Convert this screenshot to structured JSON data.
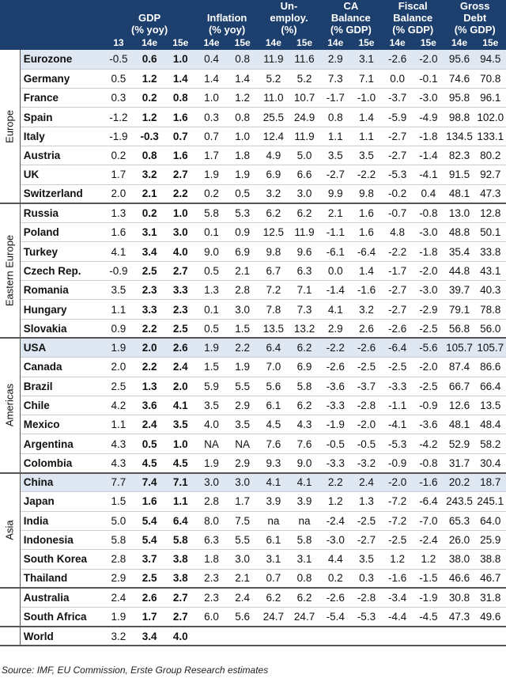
{
  "header": {
    "groups": [
      {
        "label": "GDP\n(% yoy)",
        "span": 3
      },
      {
        "label": "Inflation\n(% yoy)",
        "span": 2
      },
      {
        "label": "Un-\nemploy.\n(%)",
        "span": 2
      },
      {
        "label": "CA\nBalance\n(% GDP)",
        "span": 2
      },
      {
        "label": "Fiscal\nBalance\n(% GDP)",
        "span": 2
      },
      {
        "label": "Gross\nDebt\n(% GDP)",
        "span": 2
      }
    ],
    "years": [
      "13",
      "14e",
      "15e",
      "14e",
      "15e",
      "14e",
      "15e",
      "14e",
      "15e",
      "14e",
      "15e",
      "14e",
      "15e"
    ]
  },
  "regions": [
    {
      "name": "Europe",
      "rows": [
        {
          "country": "Eurozone",
          "hl": true,
          "values": [
            "-0.5",
            "0.6",
            "1.0",
            "0.4",
            "0.8",
            "11.9",
            "11.6",
            "2.9",
            "3.1",
            "-2.6",
            "-2.0",
            "95.6",
            "94.5"
          ]
        },
        {
          "country": "Germany",
          "values": [
            "0.5",
            "1.2",
            "1.4",
            "1.4",
            "1.4",
            "5.2",
            "5.2",
            "7.3",
            "7.1",
            "0.0",
            "-0.1",
            "74.6",
            "70.8"
          ]
        },
        {
          "country": "France",
          "values": [
            "0.3",
            "0.2",
            "0.8",
            "1.0",
            "1.2",
            "11.0",
            "10.7",
            "-1.7",
            "-1.0",
            "-3.7",
            "-3.0",
            "95.8",
            "96.1"
          ]
        },
        {
          "country": "Spain",
          "values": [
            "-1.2",
            "1.2",
            "1.6",
            "0.3",
            "0.8",
            "25.5",
            "24.9",
            "0.8",
            "1.4",
            "-5.9",
            "-4.9",
            "98.8",
            "102.0"
          ]
        },
        {
          "country": "Italy",
          "values": [
            "-1.9",
            "-0.3",
            "0.7",
            "0.7",
            "1.0",
            "12.4",
            "11.9",
            "1.1",
            "1.1",
            "-2.7",
            "-1.8",
            "134.5",
            "133.1"
          ]
        },
        {
          "country": "Austria",
          "values": [
            "0.2",
            "0.8",
            "1.6",
            "1.7",
            "1.8",
            "4.9",
            "5.0",
            "3.5",
            "3.5",
            "-2.7",
            "-1.4",
            "82.3",
            "80.2"
          ]
        },
        {
          "country": "UK",
          "values": [
            "1.7",
            "3.2",
            "2.7",
            "1.9",
            "1.9",
            "6.9",
            "6.6",
            "-2.7",
            "-2.2",
            "-5.3",
            "-4.1",
            "91.5",
            "92.7"
          ]
        },
        {
          "country": "Switzerland",
          "values": [
            "2.0",
            "2.1",
            "2.2",
            "0.2",
            "0.5",
            "3.2",
            "3.0",
            "9.9",
            "9.8",
            "-0.2",
            "0.4",
            "48.1",
            "47.3"
          ]
        }
      ]
    },
    {
      "name": "Eastern Europe",
      "rows": [
        {
          "country": "Russia",
          "values": [
            "1.3",
            "0.2",
            "1.0",
            "5.8",
            "5.3",
            "6.2",
            "6.2",
            "2.1",
            "1.6",
            "-0.7",
            "-0.8",
            "13.0",
            "12.8"
          ]
        },
        {
          "country": "Poland",
          "values": [
            "1.6",
            "3.1",
            "3.0",
            "0.1",
            "0.9",
            "12.5",
            "11.9",
            "-1.1",
            "1.6",
            "4.8",
            "-3.0",
            "48.8",
            "50.1"
          ]
        },
        {
          "country": "Turkey",
          "values": [
            "4.1",
            "3.4",
            "4.0",
            "9.0",
            "6.9",
            "9.8",
            "9.6",
            "-6.1",
            "-6.4",
            "-2.2",
            "-1.8",
            "35.4",
            "33.8"
          ]
        },
        {
          "country": "Czech Rep.",
          "values": [
            "-0.9",
            "2.5",
            "2.7",
            "0.5",
            "2.1",
            "6.7",
            "6.3",
            "0.0",
            "1.4",
            "-1.7",
            "-2.0",
            "44.8",
            "43.1"
          ]
        },
        {
          "country": "Romania",
          "values": [
            "3.5",
            "2.3",
            "3.3",
            "1.3",
            "2.8",
            "7.2",
            "7.1",
            "-1.4",
            "-1.6",
            "-2.7",
            "-3.0",
            "39.7",
            "40.3"
          ]
        },
        {
          "country": "Hungary",
          "values": [
            "1.1",
            "3.3",
            "2.3",
            "0.1",
            "3.0",
            "7.8",
            "7.3",
            "4.1",
            "3.2",
            "-2.7",
            "-2.9",
            "79.1",
            "78.8"
          ]
        },
        {
          "country": "Slovakia",
          "values": [
            "0.9",
            "2.2",
            "2.5",
            "0.5",
            "1.5",
            "13.5",
            "13.2",
            "2.9",
            "2.6",
            "-2.6",
            "-2.5",
            "56.8",
            "56.0"
          ]
        }
      ]
    },
    {
      "name": "Americas",
      "rows": [
        {
          "country": "USA",
          "hl": true,
          "values": [
            "1.9",
            "2.0",
            "2.6",
            "1.9",
            "2.2",
            "6.4",
            "6.2",
            "-2.2",
            "-2.6",
            "-6.4",
            "-5.6",
            "105.7",
            "105.7"
          ]
        },
        {
          "country": "Canada",
          "values": [
            "2.0",
            "2.2",
            "2.4",
            "1.5",
            "1.9",
            "7.0",
            "6.9",
            "-2.6",
            "-2.5",
            "-2.5",
            "-2.0",
            "87.4",
            "86.6"
          ]
        },
        {
          "country": "Brazil",
          "values": [
            "2.5",
            "1.3",
            "2.0",
            "5.9",
            "5.5",
            "5.6",
            "5.8",
            "-3.6",
            "-3.7",
            "-3.3",
            "-2.5",
            "66.7",
            "66.4"
          ]
        },
        {
          "country": "Chile",
          "values": [
            "4.2",
            "3.6",
            "4.1",
            "3.5",
            "2.9",
            "6.1",
            "6.2",
            "-3.3",
            "-2.8",
            "-1.1",
            "-0.9",
            "12.6",
            "13.5"
          ]
        },
        {
          "country": "Mexico",
          "values": [
            "1.1",
            "2.4",
            "3.5",
            "4.0",
            "3.5",
            "4.5",
            "4.3",
            "-1.9",
            "-2.0",
            "-4.1",
            "-3.6",
            "48.1",
            "48.4"
          ]
        },
        {
          "country": "Argentina",
          "values": [
            "4.3",
            "0.5",
            "1.0",
            "NA",
            "NA",
            "7.6",
            "7.6",
            "-0.5",
            "-0.5",
            "-5.3",
            "-4.2",
            "52.9",
            "58.2"
          ]
        },
        {
          "country": "Colombia",
          "values": [
            "4.3",
            "4.5",
            "4.5",
            "1.9",
            "2.9",
            "9.3",
            "9.0",
            "-3.3",
            "-3.2",
            "-0.9",
            "-0.8",
            "31.7",
            "30.4"
          ]
        }
      ]
    },
    {
      "name": "Asia",
      "rows": [
        {
          "country": "China",
          "hl": true,
          "values": [
            "7.7",
            "7.4",
            "7.1",
            "3.0",
            "3.0",
            "4.1",
            "4.1",
            "2.2",
            "2.4",
            "-2.0",
            "-1.6",
            "20.2",
            "18.7"
          ]
        },
        {
          "country": "Japan",
          "values": [
            "1.5",
            "1.6",
            "1.1",
            "2.8",
            "1.7",
            "3.9",
            "3.9",
            "1.2",
            "1.3",
            "-7.2",
            "-6.4",
            "243.5",
            "245.1"
          ]
        },
        {
          "country": "India",
          "values": [
            "5.0",
            "5.4",
            "6.4",
            "8.0",
            "7.5",
            "na",
            "na",
            "-2.4",
            "-2.5",
            "-7.2",
            "-7.0",
            "65.3",
            "64.0"
          ]
        },
        {
          "country": "Indonesia",
          "values": [
            "5.8",
            "5.4",
            "5.8",
            "6.3",
            "5.5",
            "6.1",
            "5.8",
            "-3.0",
            "-2.7",
            "-2.5",
            "-2.4",
            "26.0",
            "25.9"
          ]
        },
        {
          "country": "South Korea",
          "values": [
            "2.8",
            "3.7",
            "3.8",
            "1.8",
            "3.0",
            "3.1",
            "3.1",
            "4.4",
            "3.5",
            "1.2",
            "1.2",
            "38.0",
            "38.8"
          ]
        },
        {
          "country": "Thailand",
          "values": [
            "2.9",
            "2.5",
            "3.8",
            "2.3",
            "2.1",
            "0.7",
            "0.8",
            "0.2",
            "0.3",
            "-1.6",
            "-1.5",
            "46.6",
            "46.7"
          ]
        }
      ]
    },
    {
      "name": "",
      "rows": [
        {
          "country": "Australia",
          "values": [
            "2.4",
            "2.6",
            "2.7",
            "2.3",
            "2.4",
            "6.2",
            "6.2",
            "-2.6",
            "-2.8",
            "-3.4",
            "-1.9",
            "30.8",
            "31.8"
          ]
        },
        {
          "country": "South Africa",
          "values": [
            "1.9",
            "1.7",
            "2.7",
            "6.0",
            "5.6",
            "24.7",
            "24.7",
            "-5.4",
            "-5.3",
            "-4.4",
            "-4.5",
            "47.3",
            "49.6"
          ]
        }
      ]
    },
    {
      "name": "",
      "rows": [
        {
          "country": "World",
          "values": [
            "3.2",
            "3.4",
            "4.0",
            "",
            "",
            "",
            "",
            "",
            "",
            "",
            "",
            "",
            ""
          ]
        }
      ]
    }
  ],
  "source": "Source: IMF, EU Commission, Erste Group Research estimates"
}
